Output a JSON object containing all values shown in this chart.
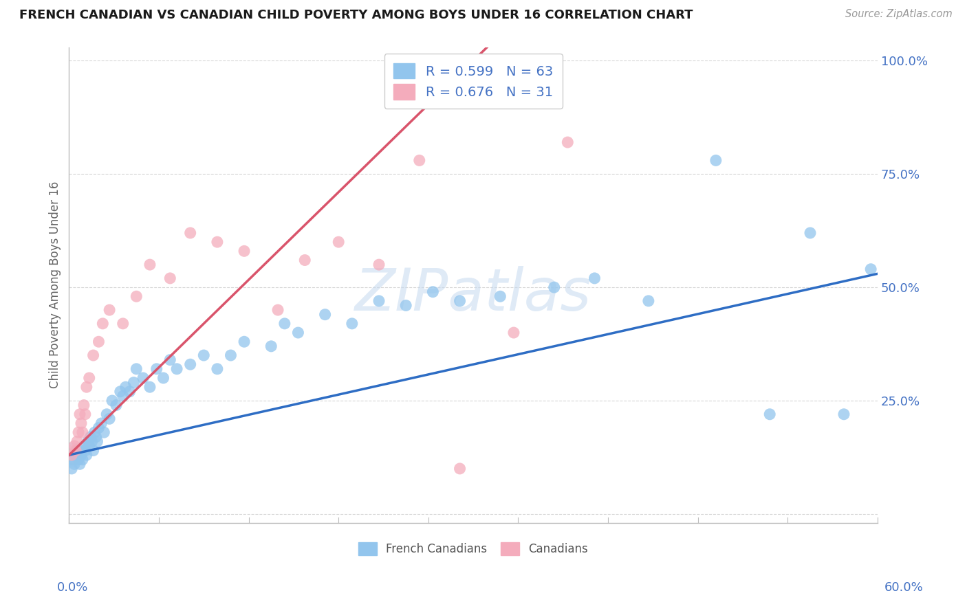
{
  "title": "FRENCH CANADIAN VS CANADIAN CHILD POVERTY AMONG BOYS UNDER 16 CORRELATION CHART",
  "source": "Source: ZipAtlas.com",
  "ylabel": "Child Poverty Among Boys Under 16",
  "xmin": 0.0,
  "xmax": 0.6,
  "ymin": -0.02,
  "ymax": 1.03,
  "ytick_vals": [
    0.0,
    0.25,
    0.5,
    0.75,
    1.0
  ],
  "ytick_labels": [
    "",
    "25.0%",
    "50.0%",
    "75.0%",
    "100.0%"
  ],
  "series1_label": "French Canadians",
  "series2_label": "Canadians",
  "series1_color": "#92C5ED",
  "series2_color": "#F4ACBC",
  "trend1_color": "#2E6DC4",
  "trend2_color": "#D9546B",
  "legend_text1": "R = 0.599   N = 63",
  "legend_text2": "R = 0.676   N = 31",
  "legend_color": "#4472C4",
  "watermark": "ZIPatlas",
  "watermark_color": "#C5D9EF",
  "axis_label_color": "#4472C4",
  "ylabel_color": "#666666",
  "title_color": "#1A1A1A",
  "source_color": "#999999",
  "grid_color": "#CCCCCC",
  "axis_color": "#BBBBBB",
  "french_x": [
    0.002,
    0.003,
    0.004,
    0.005,
    0.006,
    0.007,
    0.008,
    0.009,
    0.01,
    0.01,
    0.011,
    0.012,
    0.013,
    0.014,
    0.015,
    0.016,
    0.017,
    0.018,
    0.019,
    0.02,
    0.021,
    0.022,
    0.024,
    0.026,
    0.028,
    0.03,
    0.032,
    0.035,
    0.038,
    0.04,
    0.042,
    0.045,
    0.048,
    0.05,
    0.055,
    0.06,
    0.065,
    0.07,
    0.075,
    0.08,
    0.09,
    0.1,
    0.11,
    0.12,
    0.13,
    0.15,
    0.16,
    0.17,
    0.19,
    0.21,
    0.23,
    0.25,
    0.27,
    0.29,
    0.32,
    0.36,
    0.39,
    0.43,
    0.48,
    0.52,
    0.55,
    0.575,
    0.595
  ],
  "french_y": [
    0.1,
    0.12,
    0.11,
    0.13,
    0.14,
    0.12,
    0.11,
    0.13,
    0.12,
    0.14,
    0.15,
    0.14,
    0.13,
    0.16,
    0.15,
    0.17,
    0.16,
    0.14,
    0.18,
    0.17,
    0.16,
    0.19,
    0.2,
    0.18,
    0.22,
    0.21,
    0.25,
    0.24,
    0.27,
    0.26,
    0.28,
    0.27,
    0.29,
    0.32,
    0.3,
    0.28,
    0.32,
    0.3,
    0.34,
    0.32,
    0.33,
    0.35,
    0.32,
    0.35,
    0.38,
    0.37,
    0.42,
    0.4,
    0.44,
    0.42,
    0.47,
    0.46,
    0.49,
    0.47,
    0.48,
    0.5,
    0.52,
    0.47,
    0.78,
    0.22,
    0.62,
    0.22,
    0.54
  ],
  "canadians_x": [
    0.002,
    0.004,
    0.005,
    0.006,
    0.007,
    0.008,
    0.009,
    0.01,
    0.011,
    0.012,
    0.013,
    0.015,
    0.018,
    0.022,
    0.025,
    0.03,
    0.04,
    0.05,
    0.06,
    0.075,
    0.09,
    0.11,
    0.13,
    0.155,
    0.175,
    0.2,
    0.23,
    0.26,
    0.29,
    0.33,
    0.37
  ],
  "canadians_y": [
    0.13,
    0.15,
    0.14,
    0.16,
    0.18,
    0.22,
    0.2,
    0.18,
    0.24,
    0.22,
    0.28,
    0.3,
    0.35,
    0.38,
    0.42,
    0.45,
    0.42,
    0.48,
    0.55,
    0.52,
    0.62,
    0.6,
    0.58,
    0.45,
    0.56,
    0.6,
    0.55,
    0.78,
    0.1,
    0.4,
    0.82
  ],
  "trend1_x0": 0.0,
  "trend1_y0": 0.13,
  "trend1_x1": 0.6,
  "trend1_y1": 0.53,
  "trend2_x0": 0.0,
  "trend2_y0": 0.13,
  "trend2_x1": 0.3,
  "trend2_y1": 1.03
}
